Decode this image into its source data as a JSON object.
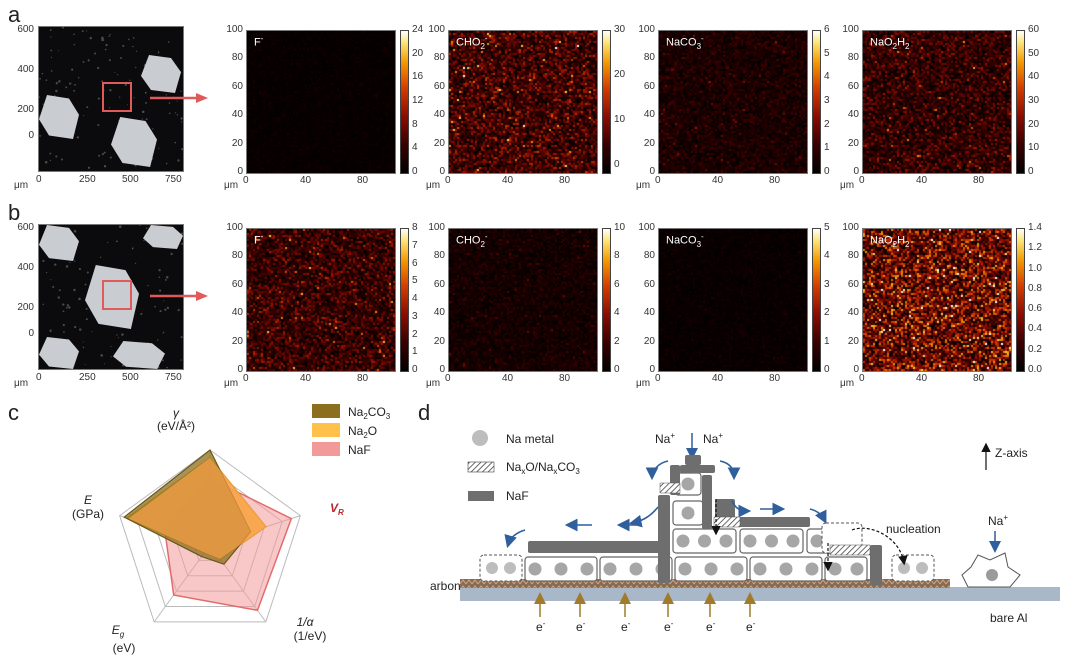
{
  "panels": {
    "a": "a",
    "b": "b",
    "c": "c",
    "d": "d"
  },
  "row_a": {
    "sem": {
      "yticks": [
        "600",
        "400",
        "200",
        "0"
      ],
      "xticks": [
        "0",
        "250",
        "500",
        "750"
      ],
      "unit": "μm"
    },
    "maps": [
      {
        "ion": "F",
        "ion_sup": "-",
        "ion_sub": "",
        "ion_tail": "",
        "cbar": [
          "24",
          "20",
          "16",
          "12",
          "8",
          "4",
          "0"
        ]
      },
      {
        "ion": "CHO",
        "ion_sub": "2",
        "ion_sup": "-",
        "ion_tail": "",
        "cbar": [
          "30",
          "20",
          "10",
          "0"
        ]
      },
      {
        "ion": "NaCO",
        "ion_sub": "3",
        "ion_sup": "-",
        "ion_tail": "",
        "cbar": [
          "6",
          "5",
          "4",
          "3",
          "2",
          "1",
          "0"
        ]
      },
      {
        "ion": "NaO",
        "ion_sub": "2",
        "ion_sup": "",
        "ion_tail": "H",
        "ion_tail_sub": "2",
        "cbar": [
          "60",
          "50",
          "40",
          "30",
          "20",
          "10",
          "0"
        ]
      }
    ],
    "map_yticks": [
      "100",
      "80",
      "60",
      "40",
      "20",
      "0"
    ],
    "map_xticks": [
      "0",
      "40",
      "80"
    ],
    "unit": "μm"
  },
  "row_b": {
    "sem": {
      "yticks": [
        "600",
        "400",
        "200",
        "0"
      ],
      "xticks": [
        "0",
        "250",
        "500",
        "750"
      ],
      "unit": "μm"
    },
    "maps": [
      {
        "ion": "F",
        "ion_sup": "-",
        "ion_sub": "",
        "ion_tail": "",
        "cbar": [
          "8",
          "7",
          "6",
          "5",
          "4",
          "3",
          "2",
          "1",
          "0"
        ]
      },
      {
        "ion": "CHO",
        "ion_sub": "2",
        "ion_sup": "-",
        "ion_tail": "",
        "cbar": [
          "10",
          "8",
          "6",
          "4",
          "2",
          "0"
        ]
      },
      {
        "ion": "NaCO",
        "ion_sub": "3",
        "ion_sup": "-",
        "ion_tail": "",
        "cbar": [
          "5",
          "4",
          "3",
          "2",
          "1",
          "0"
        ]
      },
      {
        "ion": "NaO",
        "ion_sub": "2",
        "ion_sup": "",
        "ion_tail": "H",
        "ion_tail_sub": "2",
        "cbar": [
          "1.4",
          "1.2",
          "1.0",
          "0.8",
          "0.6",
          "0.4",
          "0.2",
          "0.0"
        ]
      }
    ],
    "map_yticks": [
      "100",
      "80",
      "60",
      "40",
      "20",
      "0"
    ],
    "map_xticks": [
      "0",
      "40",
      "80"
    ],
    "unit": "μm"
  },
  "radar": {
    "axes": [
      {
        "name": "γ",
        "unit": "(eV/Å²)"
      },
      {
        "name": "V",
        "sub": "R",
        "unit": ""
      },
      {
        "name": "1/α",
        "unit": "(1/eV)"
      },
      {
        "name": "E",
        "sub": "g",
        "unit": "(eV)"
      },
      {
        "name": "E",
        "sub": "",
        "unit": "(GPa)"
      }
    ],
    "legend": [
      {
        "label": "Na",
        "sub": "2",
        "tail": "CO",
        "tail_sub": "3",
        "color": "#8b6f1e"
      },
      {
        "label": "Na",
        "sub": "2",
        "tail": "O",
        "tail_sub": "",
        "color": "#ffc14a"
      },
      {
        "label": "NaF",
        "sub": "",
        "tail": "",
        "tail_sub": "",
        "color": "#f29a9a"
      }
    ]
  },
  "schematic": {
    "legend": [
      {
        "label": "Na metal"
      },
      {
        "label": "Na",
        "sub": "x",
        "mid": "O/Na",
        "sub2": "x",
        "tail": "CO",
        "tail_sub": "3"
      },
      {
        "label": "NaF"
      }
    ],
    "na_plus": "Na",
    "plus": "+",
    "z_axis": "Z-axis",
    "nucleation": "nucleation",
    "carbon": "carbon",
    "bare_al": "bare Al",
    "electron": "e",
    "minus": "-"
  }
}
